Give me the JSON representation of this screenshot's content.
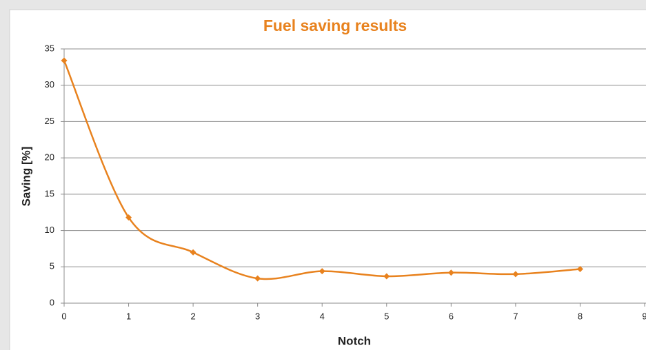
{
  "chart_data": {
    "type": "line",
    "title": "Fuel saving results",
    "x_label": "Notch",
    "y_label": "Saving [%]",
    "x": [
      0,
      1,
      2,
      3,
      4,
      5,
      6,
      7,
      8
    ],
    "series": [
      {
        "name": "Saving",
        "color": "#e8821e",
        "values": [
          33.4,
          11.8,
          7.0,
          3.4,
          4.4,
          3.7,
          4.2,
          4.0,
          4.7
        ]
      }
    ],
    "xlim": [
      0,
      9
    ],
    "xticks": [
      0,
      1,
      2,
      3,
      4,
      5,
      6,
      7,
      8,
      9
    ],
    "ylim": [
      0,
      35
    ],
    "yticks": [
      0,
      5,
      10,
      15,
      20,
      25,
      30,
      35
    ],
    "grid": true,
    "smooth": true
  }
}
